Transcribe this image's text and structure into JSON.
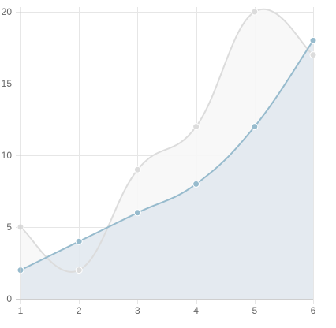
{
  "chart_data": {
    "type": "area",
    "x": [
      1,
      2,
      3,
      4,
      5,
      6
    ],
    "xlim": [
      1,
      6
    ],
    "ylim": [
      0,
      20
    ],
    "x_ticks": [
      "1",
      "2",
      "3",
      "4",
      "5",
      "6"
    ],
    "y_ticks": [
      "0",
      "5",
      "10",
      "15",
      "20"
    ],
    "grid": true,
    "series": [
      {
        "values": [
          5,
          2,
          9,
          12,
          20,
          17
        ],
        "line_color": "#dcdcdc",
        "fill_color": "#f7f7f7",
        "point_color": "#dcdcdc"
      },
      {
        "values": [
          2,
          4,
          6,
          8,
          12,
          18
        ],
        "line_color": "#97bbcd",
        "fill_color": "#e0e8ef",
        "point_color": "#97bbcd"
      }
    ]
  }
}
